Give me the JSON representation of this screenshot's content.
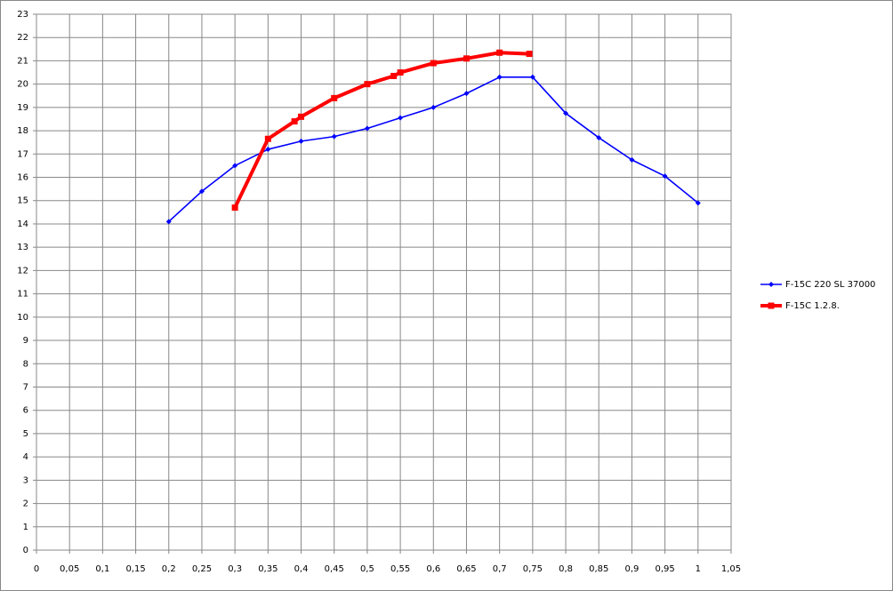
{
  "chart_data": {
    "type": "line",
    "xlim": [
      0,
      1.05
    ],
    "xticks": [
      0,
      {
        "value": 0.05,
        "label": "0,05"
      },
      {
        "value": 0.1,
        "label": "0,1"
      },
      {
        "value": 0.15,
        "label": "0,15"
      },
      {
        "value": 0.2,
        "label": "0,2"
      },
      {
        "value": 0.25,
        "label": "0,25"
      },
      {
        "value": 0.3,
        "label": "0,3"
      },
      {
        "value": 0.35,
        "label": "0,35"
      },
      {
        "value": 0.4,
        "label": "0,4"
      },
      {
        "value": 0.45,
        "label": "0,45"
      },
      {
        "value": 0.5,
        "label": "0,5"
      },
      {
        "value": 0.55,
        "label": "0,55"
      },
      {
        "value": 0.6,
        "label": "0,6"
      },
      {
        "value": 0.65,
        "label": "0,65"
      },
      {
        "value": 0.7,
        "label": "0,7"
      },
      {
        "value": 0.75,
        "label": "0,75"
      },
      {
        "value": 0.8,
        "label": "0,8"
      },
      {
        "value": 0.85,
        "label": "0,85"
      },
      {
        "value": 0.9,
        "label": "0,9"
      },
      {
        "value": 0.95,
        "label": "0,95"
      },
      1,
      {
        "value": 1.05,
        "label": "1,05"
      }
    ],
    "ylim": [
      0,
      23
    ],
    "yticks": [
      0,
      1,
      2,
      3,
      4,
      5,
      6,
      7,
      8,
      9,
      10,
      11,
      12,
      13,
      14,
      15,
      16,
      17,
      18,
      19,
      20,
      21,
      22,
      23
    ],
    "grid": true,
    "legend": "right",
    "series": [
      {
        "name": "F-15C 220 SL 37000",
        "color": "#0000ff",
        "marker": "diamond",
        "x": [
          0.2,
          0.25,
          0.3,
          0.35,
          0.4,
          0.45,
          0.5,
          0.55,
          0.6,
          0.65,
          0.7,
          0.75,
          0.8,
          0.85,
          0.9,
          0.95,
          1
        ],
        "values": [
          14.1,
          15.4,
          16.5,
          17.2,
          17.55,
          17.75,
          18.1,
          18.55,
          19.0,
          19.6,
          20.3,
          20.3,
          18.75,
          17.7,
          16.75,
          16.05,
          14.9
        ]
      },
      {
        "name": "F-15C 1.2.8.",
        "color": "#ff0000",
        "marker": "square",
        "x": [
          0.3,
          0.35,
          0.39,
          0.4,
          0.45,
          0.5,
          0.54,
          0.55,
          0.6,
          0.65,
          0.7,
          0.745
        ],
        "values": [
          14.7,
          17.65,
          18.4,
          18.6,
          19.4,
          20.0,
          20.35,
          20.5,
          20.9,
          21.1,
          21.35,
          21.3
        ]
      }
    ]
  }
}
